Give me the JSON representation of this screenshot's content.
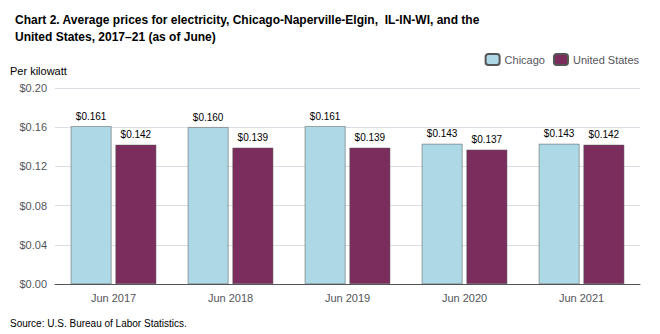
{
  "chart_data": {
    "type": "bar",
    "title": "Chart 2. Average prices for electricity, Chicago-Naperville-Elgin,  IL-IN-WI, and the\nUnited States, 2017–21 (as of June)",
    "ylabel": "Per kilowatt",
    "source": "Source: U.S. Bureau of Labor Statistics.",
    "categories": [
      "Jun 2017",
      "Jun 2018",
      "Jun 2019",
      "Jun 2020",
      "Jun 2021"
    ],
    "series": [
      {
        "name": "Chicago",
        "color": "#ADD8E6",
        "values": [
          0.161,
          0.16,
          0.161,
          0.143,
          0.143
        ],
        "value_labels": [
          "$0.161",
          "$0.160",
          "$0.161",
          "$0.143",
          "$0.143"
        ]
      },
      {
        "name": "United States",
        "color": "#7B2D5E",
        "values": [
          0.142,
          0.139,
          0.139,
          0.137,
          0.142
        ],
        "value_labels": [
          "$0.142",
          "$0.139",
          "$0.139",
          "$0.137",
          "$0.142"
        ]
      }
    ],
    "ylim": [
      0,
      0.2
    ],
    "yticks": [
      {
        "value": 0.0,
        "label": "$0.00"
      },
      {
        "value": 0.04,
        "label": "$0.04"
      },
      {
        "value": 0.08,
        "label": "$0.08"
      },
      {
        "value": 0.12,
        "label": "$0.12"
      },
      {
        "value": 0.16,
        "label": "$0.16"
      },
      {
        "value": 0.2,
        "label": "$0.20"
      }
    ],
    "grid": true,
    "legend": "upper right",
    "data_labels": true
  }
}
